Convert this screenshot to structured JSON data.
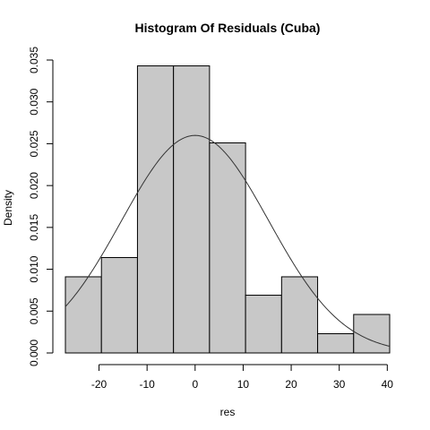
{
  "chart_data": {
    "type": "bar",
    "title": "Histogram Of Residuals (Cuba)",
    "xlabel": "res",
    "ylabel": "Density",
    "bin_edges": [
      -27,
      -19.5,
      -12,
      -4.5,
      3,
      10.5,
      18,
      25.5,
      33,
      40.5
    ],
    "values": [
      0.0091,
      0.0114,
      0.0343,
      0.0343,
      0.0251,
      0.0069,
      0.0091,
      0.0023,
      0.0046
    ],
    "xlim": [
      -27,
      40.5
    ],
    "ylim": [
      0,
      0.035
    ],
    "x_ticks": [
      -20,
      -10,
      0,
      10,
      20,
      30,
      40
    ],
    "y_ticks": [
      0.0,
      0.005,
      0.01,
      0.015,
      0.02,
      0.025,
      0.03,
      0.035
    ],
    "x_tick_labels": [
      "-20",
      "-10",
      "0",
      "10",
      "20",
      "30",
      "40"
    ],
    "y_tick_labels": [
      "0.000",
      "0.005",
      "0.010",
      "0.015",
      "0.020",
      "0.025",
      "0.030",
      "0.035"
    ],
    "overlay_curve": {
      "type": "normal-density",
      "mean": 0,
      "sd": 15.35
    },
    "grid": false,
    "legend": "none"
  }
}
